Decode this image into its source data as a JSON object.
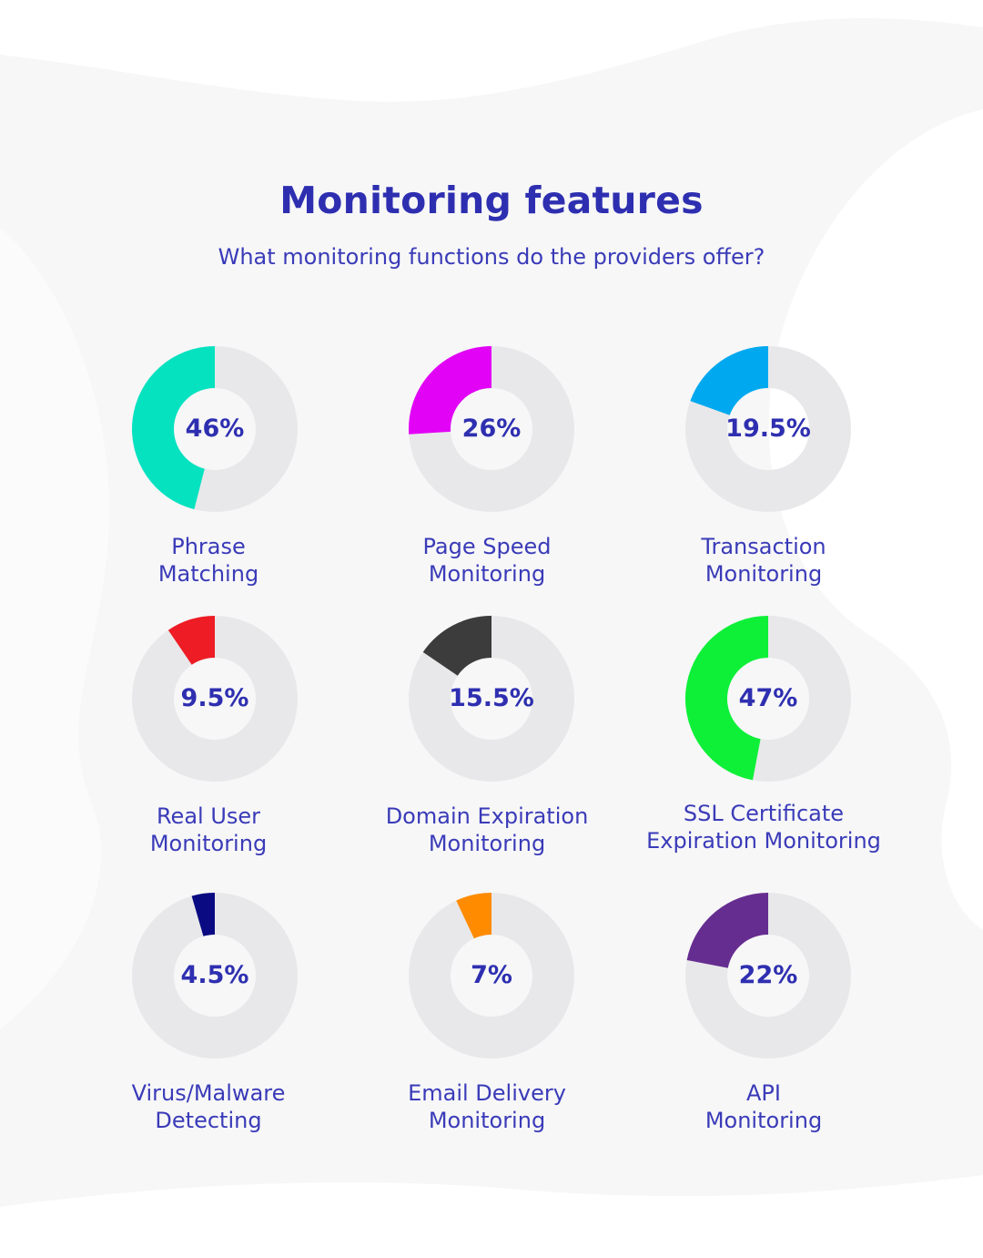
{
  "header": {
    "title": "Monitoring features",
    "subtitle": "What monitoring functions do the providers offer?"
  },
  "colors": {
    "track": "#e8e8ea",
    "title": "#2e2fb0",
    "text": "#3a3bb8",
    "background": "#f7f7f8",
    "background_shape": "#ffffff"
  },
  "chart_data": {
    "type": "pie",
    "variant": "donut",
    "title": "Monitoring features",
    "subtitle": "What monitoring functions do the providers offer?",
    "unit": "%",
    "max": 100,
    "items": [
      {
        "label_lines": [
          "Phrase",
          "Matching"
        ],
        "value": 46,
        "display": "46%",
        "color": "#05e2c0"
      },
      {
        "label_lines": [
          "Page Speed",
          "Monitoring"
        ],
        "value": 26,
        "display": "26%",
        "color": "#e203f6"
      },
      {
        "label_lines": [
          "Transaction",
          "Monitoring"
        ],
        "value": 19.5,
        "display": "19.5%",
        "color": "#00a9ef"
      },
      {
        "label_lines": [
          "Real User",
          "Monitoring"
        ],
        "value": 9.5,
        "display": "9.5%",
        "color": "#ee1c24"
      },
      {
        "label_lines": [
          "Domain Expiration",
          "Monitoring"
        ],
        "value": 15.5,
        "display": "15.5%",
        "color": "#3c3c3c"
      },
      {
        "label_lines": [
          "SSL Certificate",
          "Expiration Monitoring"
        ],
        "value": 47,
        "display": "47%",
        "color": "#0ef038"
      },
      {
        "label_lines": [
          "Virus/Malware",
          "Detecting"
        ],
        "value": 4.5,
        "display": "4.5%",
        "color": "#0a0a82"
      },
      {
        "label_lines": [
          "Email Delivery",
          "Monitoring"
        ],
        "value": 7,
        "display": "7%",
        "color": "#ff8c00"
      },
      {
        "label_lines": [
          "API",
          "Monitoring"
        ],
        "value": 22,
        "display": "22%",
        "color": "#662d91"
      }
    ]
  }
}
